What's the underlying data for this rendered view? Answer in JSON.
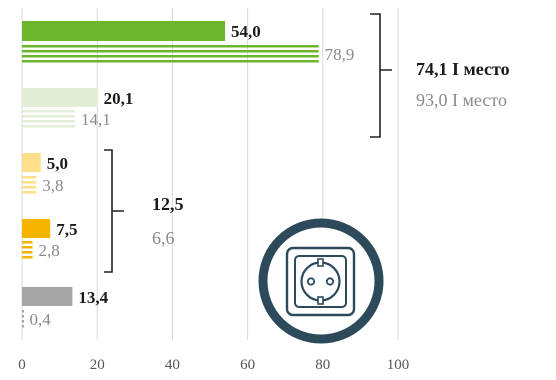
{
  "chart_data": {
    "type": "bar",
    "orientation": "horizontal",
    "xlim": [
      0,
      100
    ],
    "x_ticks": [
      "0",
      "20",
      "40",
      "60",
      "80",
      "100"
    ],
    "grid": true,
    "rows": [
      {
        "value": 54.0,
        "label": "54,0",
        "compare": 78.9,
        "compare_label": "78,9",
        "color": "#6cb52d"
      },
      {
        "value": 20.1,
        "label": "20,1",
        "compare": 14.1,
        "compare_label": "14,1",
        "color": "#e2efd6"
      },
      {
        "value": 5.0,
        "label": "5,0",
        "compare": 3.8,
        "compare_label": "3,8",
        "color": "#ffe08a"
      },
      {
        "value": 7.5,
        "label": "7,5",
        "compare": 2.8,
        "compare_label": "2,8",
        "color": "#f5b400"
      },
      {
        "value": 13.4,
        "label": "13,4",
        "compare": 0.4,
        "compare_label": "0,4",
        "color": "#a6a6a6"
      }
    ],
    "group_middle": {
      "value": "12,5",
      "compare": "6,6"
    },
    "group_top": {
      "value": "74,1 I место",
      "compare": "93,0 I место"
    }
  },
  "icon": {
    "name": "power-socket-icon",
    "ring_color": "#2d4a5a"
  }
}
